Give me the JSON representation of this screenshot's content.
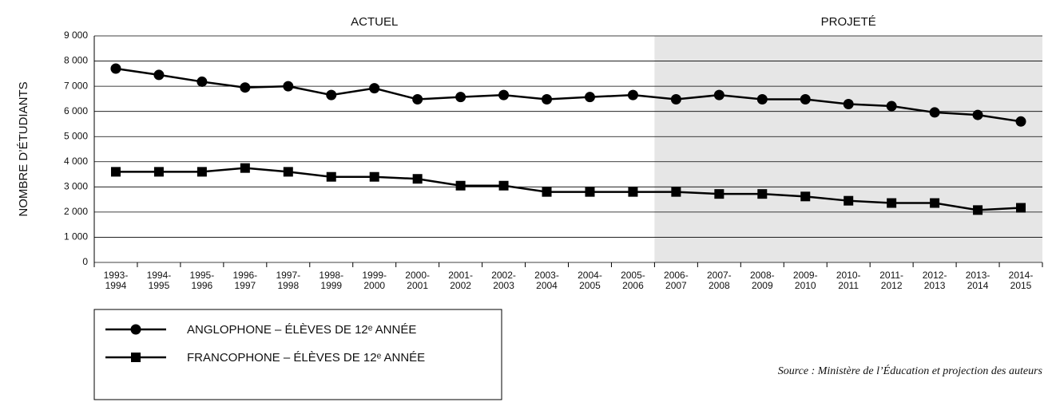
{
  "chart_data": {
    "type": "line",
    "y_label": "NOMBRE D’ÉTUDIANTS",
    "source": "Source : Ministère de l’Éducation et projection des auteurs",
    "regions": [
      {
        "label": "ACTUEL",
        "first": 0,
        "last": 12
      },
      {
        "label": "PROJETÉ",
        "first": 13,
        "last": 21,
        "color": "#e6e6e6"
      }
    ],
    "categories": [
      [
        "1993-",
        "1994"
      ],
      [
        "1994-",
        "1995"
      ],
      [
        "1995-",
        "1996"
      ],
      [
        "1996-",
        "1997"
      ],
      [
        "1997-",
        "1998"
      ],
      [
        "1998-",
        "1999"
      ],
      [
        "1999-",
        "2000"
      ],
      [
        "2000-",
        "2001"
      ],
      [
        "2001-",
        "2002"
      ],
      [
        "2002-",
        "2003"
      ],
      [
        "2003-",
        "2004"
      ],
      [
        "2004-",
        "2005"
      ],
      [
        "2005-",
        "2006"
      ],
      [
        "2006-",
        "2007"
      ],
      [
        "2007-",
        "2008"
      ],
      [
        "2008-",
        "2009"
      ],
      [
        "2009-",
        "2010"
      ],
      [
        "2010-",
        "2011"
      ],
      [
        "2011-",
        "2012"
      ],
      [
        "2012-",
        "2013"
      ],
      [
        "2013-",
        "2014"
      ],
      [
        "2014-",
        "2015"
      ]
    ],
    "series": [
      {
        "name": "ANGLOPHONE – ÉLÈVES DE 12ᵉ ANNÉE",
        "color": "#000000",
        "marker": "circle",
        "values": [
          7700,
          7450,
          7180,
          6950,
          7000,
          6650,
          6920,
          6480,
          6570,
          6650,
          6480,
          6570,
          6650,
          6480,
          6650,
          6480,
          6480,
          6290,
          6210,
          5960,
          5860,
          5600
        ]
      },
      {
        "name": "FRANCOPHONE – ÉLÈVES DE 12ᵉ ANNÉE",
        "color": "#000000",
        "marker": "square",
        "values": [
          3600,
          3600,
          3600,
          3750,
          3600,
          3400,
          3400,
          3320,
          3050,
          3050,
          2800,
          2800,
          2800,
          2800,
          2720,
          2720,
          2620,
          2450,
          2360,
          2360,
          2080,
          2170
        ]
      }
    ],
    "ylim": [
      0,
      9000
    ],
    "yticks": [
      0,
      {
        "value": 1000,
        "label": "1 000"
      },
      {
        "value": 2000,
        "label": "2 000"
      },
      {
        "value": 3000,
        "label": "3 000"
      },
      {
        "value": 4000,
        "label": "4 000"
      },
      {
        "value": 5000,
        "label": "5 000"
      },
      {
        "value": 6000,
        "label": "6 000"
      },
      {
        "value": 7000,
        "label": "7 000"
      },
      {
        "value": 8000,
        "label": "8 000"
      },
      {
        "value": 9000,
        "label": "9 000"
      }
    ],
    "grid": true
  }
}
